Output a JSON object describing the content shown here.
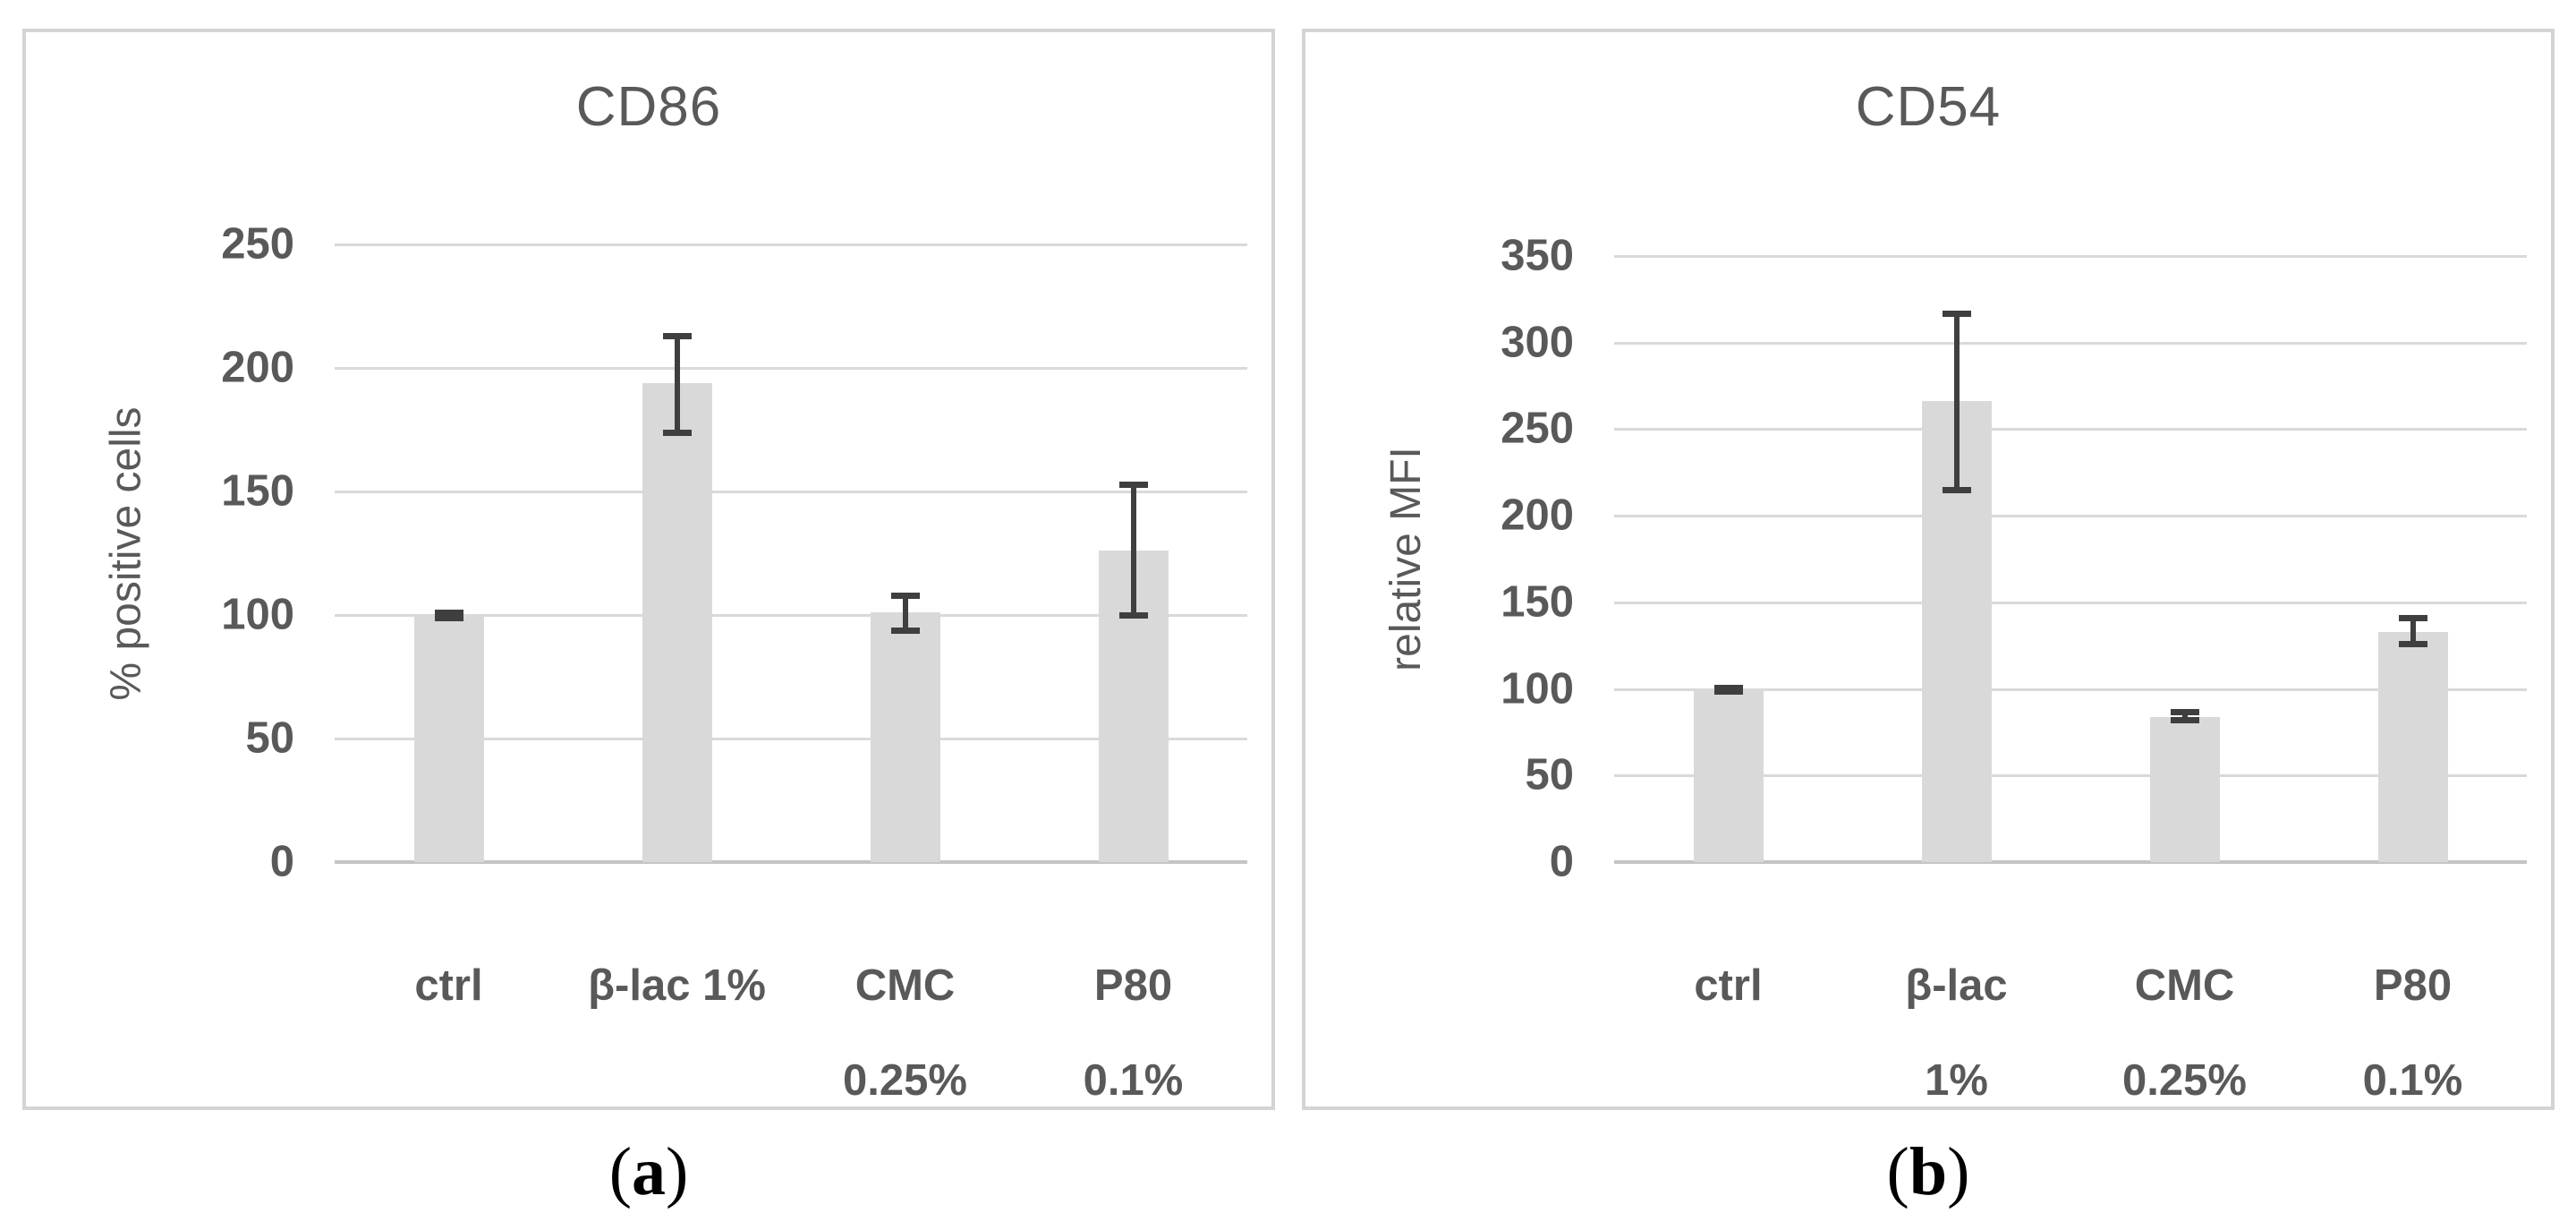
{
  "style": {
    "bar_color": "#d9d9d9",
    "gridline_color": "#d9d9d9",
    "axis_line_color": "#c4c4c4",
    "error_bar_color": "#3f3f3f",
    "text_color": "#595959",
    "panel_border_color": "#d4d4d4",
    "caption_color": "#000000"
  },
  "captions": {
    "a_open": "(",
    "a_letter": "a",
    "a_close": ")",
    "b_open": "(",
    "b_letter": "b",
    "b_close": ")"
  },
  "chart_data": [
    {
      "type": "bar",
      "title": "CD86",
      "xlabel": "",
      "ylabel": "% positive cells",
      "ylim": [
        0,
        250
      ],
      "yticks": [
        0,
        50,
        100,
        150,
        200,
        250
      ],
      "grid": true,
      "legend": false,
      "categories": [
        [
          "ctrl"
        ],
        [
          "β-lac 1%"
        ],
        [
          "CMC",
          "0.25%"
        ],
        [
          "P80",
          "0.1%"
        ]
      ],
      "categories_flat": [
        "ctrl",
        "β-lac 1%",
        "CMC 0.25%",
        "P80 0.1%"
      ],
      "values": [
        100,
        194,
        101,
        126
      ],
      "error_low": [
        99,
        174,
        94,
        100
      ],
      "error_high": [
        101,
        213,
        108,
        153
      ]
    },
    {
      "type": "bar",
      "title": "CD54",
      "xlabel": "",
      "ylabel": "relative MFI",
      "ylim": [
        0,
        350
      ],
      "yticks": [
        0,
        50,
        100,
        150,
        200,
        250,
        300,
        350
      ],
      "grid": true,
      "legend": false,
      "categories": [
        [
          "ctrl"
        ],
        [
          "β-lac",
          "1%"
        ],
        [
          "CMC",
          "0.25%"
        ],
        [
          "P80",
          "0.1%"
        ]
      ],
      "categories_flat": [
        "ctrl",
        "β-lac 1%",
        "CMC 0.25%",
        "P80 0.1%"
      ],
      "values": [
        100,
        266,
        84,
        133
      ],
      "error_low": [
        99,
        215,
        82,
        126
      ],
      "error_high": [
        101,
        317,
        87,
        141
      ]
    }
  ]
}
